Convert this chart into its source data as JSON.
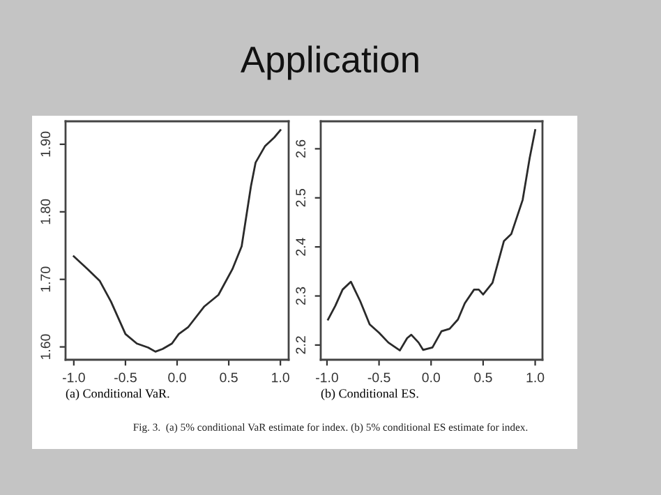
{
  "chart_data": [
    {
      "type": "line",
      "title": "Application",
      "xlabel": "(a) Conditional VaR.",
      "x": [
        -1.0,
        -0.865,
        -0.75,
        -0.64,
        -0.5,
        -0.39,
        -0.28,
        -0.21,
        -0.14,
        -0.05,
        0.016,
        0.106,
        0.264,
        0.4,
        0.535,
        0.625,
        0.715,
        0.76,
        0.85,
        0.94,
        1.0
      ],
      "series": [
        {
          "color": "#2a2a2a",
          "values": [
            1.734,
            1.715,
            1.698,
            1.667,
            1.619,
            1.605,
            1.599,
            1.593,
            1.597,
            1.605,
            1.619,
            1.629,
            1.66,
            1.677,
            1.715,
            1.749,
            1.838,
            1.873,
            1.897,
            1.91,
            1.921
          ]
        }
      ],
      "xlim": [
        -1.08,
        1.08
      ],
      "ylim": [
        1.581,
        1.934
      ],
      "xticks": [
        {
          "value": -1.0,
          "label": "-1.0"
        },
        {
          "value": -0.5,
          "label": "-0.5"
        },
        {
          "value": 0.0,
          "label": "0.0"
        },
        {
          "value": 0.5,
          "label": "0.5"
        },
        {
          "value": 1.0,
          "label": "1.0"
        }
      ],
      "yticks": [
        {
          "value": 1.6,
          "label": "1.60"
        },
        {
          "value": 1.7,
          "label": "1.70"
        },
        {
          "value": 1.8,
          "label": "1.80"
        },
        {
          "value": 1.9,
          "label": "1.90"
        }
      ],
      "grid": false,
      "legend": false
    },
    {
      "type": "line",
      "xlabel": "(b) Conditional ES.",
      "annotations": [
        "Fig. 3.  (a) 5% conditional VaR estimate for index. (b) 5% conditional ES estimate for index."
      ],
      "x": [
        -0.99,
        -0.92,
        -0.85,
        -0.77,
        -0.68,
        -0.59,
        -0.5,
        -0.41,
        -0.3,
        -0.23,
        -0.19,
        -0.12,
        -0.076,
        0.013,
        0.1,
        0.178,
        0.258,
        0.324,
        0.413,
        0.458,
        0.5,
        0.59,
        0.7,
        0.77,
        0.88,
        0.947,
        1.0
      ],
      "series": [
        {
          "color": "#2a2a2a",
          "values": [
            2.252,
            2.28,
            2.313,
            2.329,
            2.289,
            2.242,
            2.225,
            2.205,
            2.189,
            2.214,
            2.221,
            2.205,
            2.19,
            2.195,
            2.228,
            2.233,
            2.252,
            2.285,
            2.313,
            2.313,
            2.303,
            2.327,
            2.412,
            2.426,
            2.496,
            2.581,
            2.638
          ]
        }
      ],
      "xlim": [
        -1.06,
        1.07
      ],
      "ylim": [
        2.17,
        2.656
      ],
      "xticks": [
        {
          "value": -1.0,
          "label": "-1.0"
        },
        {
          "value": -0.5,
          "label": "-0.5"
        },
        {
          "value": 0.0,
          "label": "0.0"
        },
        {
          "value": 0.5,
          "label": "0.5"
        },
        {
          "value": 1.0,
          "label": "1.0"
        }
      ],
      "yticks": [
        2.2,
        2.3,
        2.4,
        2.5,
        2.6
      ],
      "grid": false,
      "legend": false
    }
  ]
}
